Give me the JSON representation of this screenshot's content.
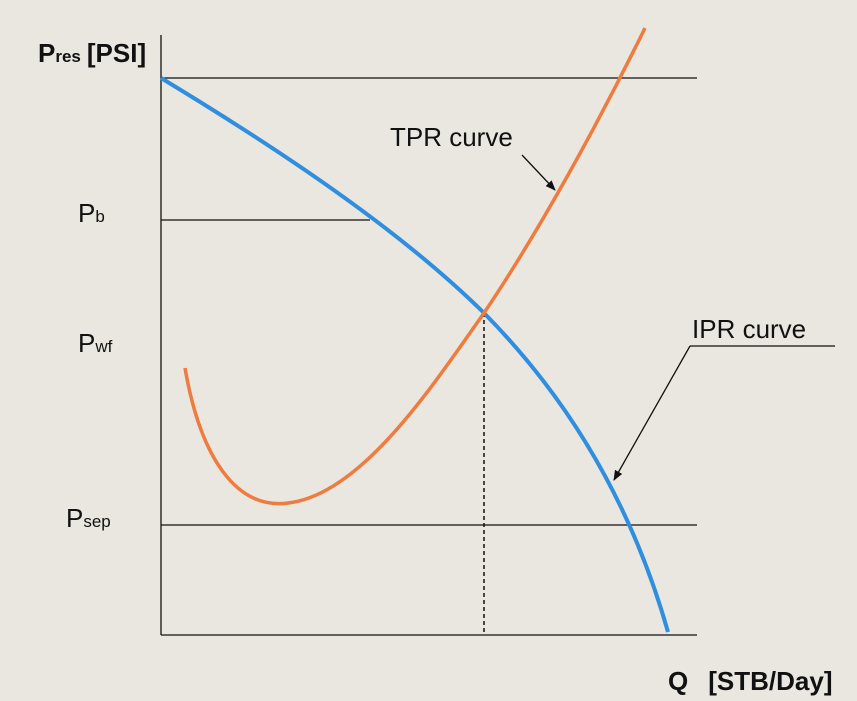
{
  "y_axis": {
    "symbol": "P",
    "subscript": "res",
    "unit": "[PSI]"
  },
  "x_axis": {
    "symbol": "Q",
    "unit": "[STB/Day]"
  },
  "levels": [
    {
      "symbol": "P",
      "subscript": "b"
    },
    {
      "symbol": "P",
      "subscript": "wf"
    },
    {
      "symbol": "P",
      "subscript": "sep"
    }
  ],
  "curves": [
    {
      "label": "TPR curve"
    },
    {
      "label": "IPR curve"
    }
  ]
}
